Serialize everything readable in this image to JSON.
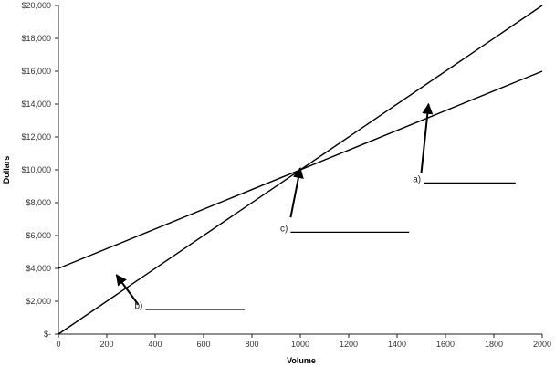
{
  "chart_data": {
    "type": "line",
    "title": "",
    "xlabel": "Volume",
    "ylabel": "Dollars",
    "xlim": [
      0,
      2000
    ],
    "ylim": [
      0,
      20000
    ],
    "x_ticks": [
      0,
      200,
      400,
      600,
      800,
      1000,
      1200,
      1400,
      1600,
      1800,
      2000
    ],
    "x_tick_labels": [
      "0",
      "200",
      "400",
      "600",
      "800",
      "1000",
      "1200",
      "1400",
      "1600",
      "1800",
      "2000"
    ],
    "y_ticks": [
      0,
      2000,
      4000,
      6000,
      8000,
      10000,
      12000,
      14000,
      16000,
      18000,
      20000
    ],
    "y_tick_labels": [
      "$-",
      "$2,000",
      "$4,000",
      "$6,000",
      "$8,000",
      "$10,000",
      "$12,000",
      "$14,000",
      "$16,000",
      "$18,000",
      "$20,000"
    ],
    "grid": false,
    "legend": "none",
    "series": [
      {
        "x": [
          0,
          2000
        ],
        "values": [
          0,
          20000
        ]
      },
      {
        "x": [
          0,
          2000
        ],
        "values": [
          4000,
          16000
        ]
      }
    ],
    "annotations": [
      {
        "label": "a)",
        "arrow_from": [
          1500,
          9800
        ],
        "arrow_to": [
          1530,
          14000
        ],
        "blank_from": [
          1510,
          9200
        ],
        "blank_to": [
          1890,
          9200
        ]
      },
      {
        "label": "b)",
        "arrow_from": [
          330,
          1800
        ],
        "arrow_to": [
          240,
          3600
        ],
        "blank_from": [
          360,
          1500
        ],
        "blank_to": [
          770,
          1500
        ]
      },
      {
        "label": "c)",
        "arrow_from": [
          960,
          7100
        ],
        "arrow_to": [
          1000,
          10100
        ],
        "blank_from": [
          960,
          6200
        ],
        "blank_to": [
          1450,
          6200
        ]
      }
    ]
  },
  "colors": {
    "line": "#000000",
    "axis": "#222222"
  }
}
